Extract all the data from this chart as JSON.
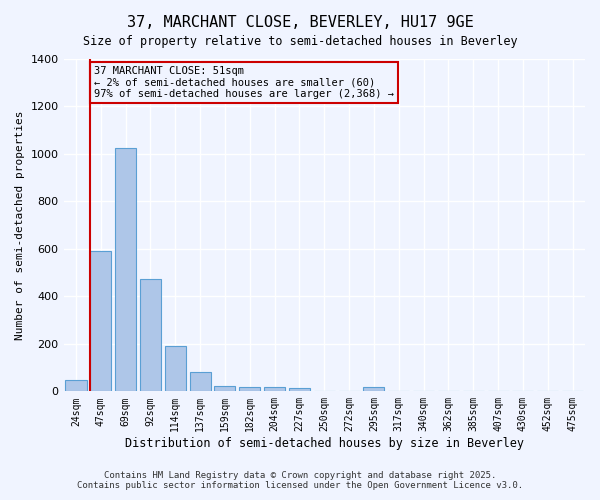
{
  "title_line1": "37, MARCHANT CLOSE, BEVERLEY, HU17 9GE",
  "title_line2": "Size of property relative to semi-detached houses in Beverley",
  "xlabel": "Distribution of semi-detached houses by size in Beverley",
  "ylabel": "Number of semi-detached properties",
  "bar_labels": [
    "24sqm",
    "47sqm",
    "69sqm",
    "92sqm",
    "114sqm",
    "137sqm",
    "159sqm",
    "182sqm",
    "204sqm",
    "227sqm",
    "250sqm",
    "272sqm",
    "295sqm",
    "317sqm",
    "340sqm",
    "362sqm",
    "385sqm",
    "407sqm",
    "430sqm",
    "452sqm",
    "475sqm"
  ],
  "bar_values": [
    47,
    592,
    1025,
    475,
    190,
    80,
    22,
    17,
    17,
    12,
    0,
    0,
    20,
    0,
    0,
    0,
    0,
    0,
    0,
    0,
    0
  ],
  "bar_color": "#aec6e8",
  "bar_edgecolor": "#5a9fd4",
  "vline_x": 1,
  "vline_color": "#cc0000",
  "ylim": [
    0,
    1400
  ],
  "yticks": [
    0,
    200,
    400,
    600,
    800,
    1000,
    1200,
    1400
  ],
  "annotation_text": "37 MARCHANT CLOSE: 51sqm\n← 2% of semi-detached houses are smaller (60)\n97% of semi-detached houses are larger (2,368) →",
  "annotation_box_color": "#cc0000",
  "footer_line1": "Contains HM Land Registry data © Crown copyright and database right 2025.",
  "footer_line2": "Contains public sector information licensed under the Open Government Licence v3.0.",
  "bg_color": "#f0f4ff",
  "grid_color": "#ffffff"
}
